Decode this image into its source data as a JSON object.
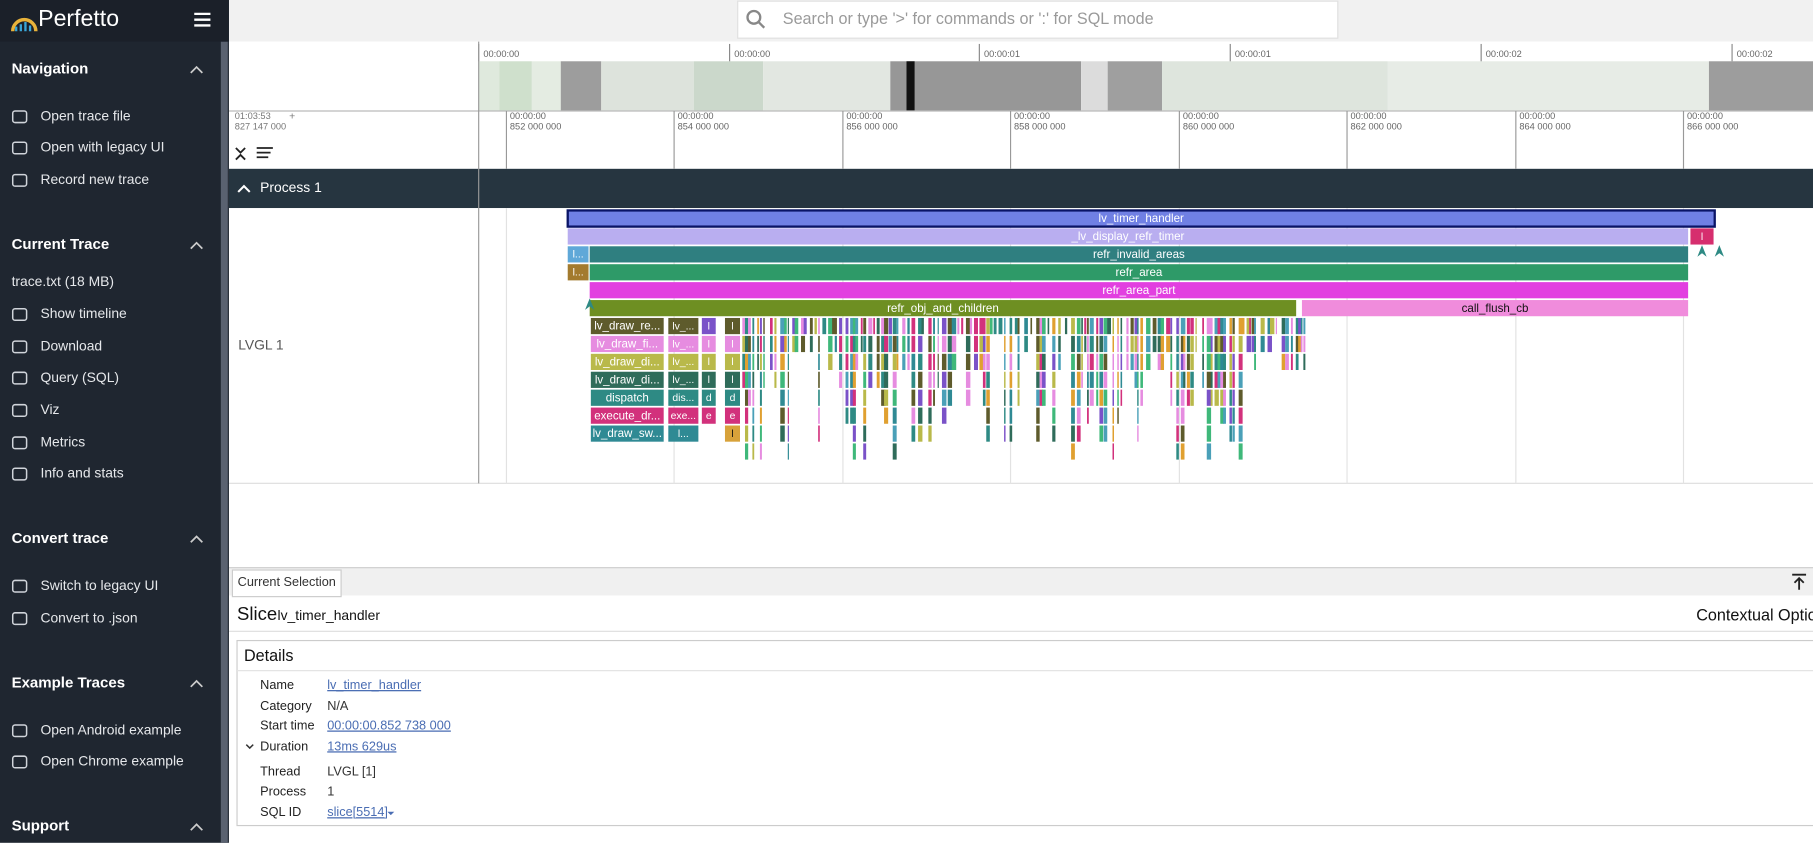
{
  "sidebar": {
    "brand": "Perfetto",
    "sections": [
      {
        "title": "Navigation",
        "items": [
          "Open trace file",
          "Open with legacy UI",
          "Record new trace"
        ]
      },
      {
        "title": "Current Trace",
        "items": [
          "trace.txt (18 MB)",
          "Show timeline",
          "Download",
          "Query (SQL)",
          "Viz",
          "Metrics",
          "Info and stats"
        ]
      },
      {
        "title": "Convert trace",
        "items": [
          "Switch to legacy UI",
          "Convert to .json"
        ]
      },
      {
        "title": "Example Traces",
        "items": [
          "Open Android example",
          "Open Chrome example"
        ]
      },
      {
        "title": "Support"
      }
    ]
  },
  "search": {
    "placeholder": "Search or type '>' for commands or ':' for SQL mode"
  },
  "overview": {
    "ticks": [
      "00:00:00",
      "00:00:00",
      "00:00:01",
      "00:00:01",
      "00:00:02",
      "00:00:02"
    ]
  },
  "timeline": {
    "offset": {
      "time": "01:03:53",
      "ns": "827 147 000",
      "sign": "+"
    },
    "ticks": [
      {
        "time": "00:00:00",
        "ns": "852 000 000"
      },
      {
        "time": "00:00:00",
        "ns": "854 000 000"
      },
      {
        "time": "00:00:00",
        "ns": "856 000 000"
      },
      {
        "time": "00:00:00",
        "ns": "858 000 000"
      },
      {
        "time": "00:00:00",
        "ns": "860 000 000"
      },
      {
        "time": "00:00:00",
        "ns": "862 000 000"
      },
      {
        "time": "00:00:00",
        "ns": "864 000 000"
      },
      {
        "time": "00:00:00",
        "ns": "866 000 000"
      }
    ]
  },
  "process": {
    "title": "Process 1",
    "track": {
      "name": "LVGL 1",
      "slices": [
        {
          "label": "lv_timer_handler",
          "color": "#7080e4"
        },
        {
          "label": "_lv_display_refr_timer",
          "color": "#b9aef0"
        },
        {
          "label": "l",
          "color": "#d62e6e"
        },
        {
          "label": "refr_invalid_areas",
          "color": "#2f7f80"
        },
        {
          "label": "l...",
          "color": "#5fa8d8"
        },
        {
          "label": "refr_area",
          "color": "#2e9a68"
        },
        {
          "label": "l...",
          "color": "#a37b2e"
        },
        {
          "label": "refr_area_part",
          "color": "#e23fe0"
        },
        {
          "label": "refr_obj_and_children",
          "color": "#6e8f22"
        },
        {
          "label": "call_flush_cb",
          "color": "#f08cdc"
        },
        {
          "label": "lv_draw_re...",
          "color": "#5e5b2c"
        },
        {
          "label": "lv_draw_fi...",
          "color": "#e68ce0"
        },
        {
          "label": "lv_draw_di...",
          "color": "#b9b94a"
        },
        {
          "label": "lv_draw_di...",
          "color": "#2f6c5a"
        },
        {
          "label": "dispatch",
          "color": "#2e8a84"
        },
        {
          "label": "execute_dr...",
          "color": "#d2317c"
        },
        {
          "label": "lv_draw_sw...",
          "color": "#2f8a94"
        },
        {
          "label": "lv_...",
          "color": "#5e5b2c"
        },
        {
          "label": "lv_...",
          "color": "#e68ce0"
        },
        {
          "label": "lv_...",
          "color": "#b9b94a"
        },
        {
          "label": "lv_...",
          "color": "#2f6c5a"
        },
        {
          "label": "dis...",
          "color": "#2e8a84"
        },
        {
          "label": "exe...",
          "color": "#d2317c"
        },
        {
          "label": "l...",
          "color": "#2f8a94"
        },
        {
          "label": "l",
          "color": "#7a52c8"
        },
        {
          "label": "l",
          "color": "#e68ce0"
        },
        {
          "label": "l",
          "color": "#b9b94a"
        },
        {
          "label": "l",
          "color": "#2f6c5a"
        },
        {
          "label": "d",
          "color": "#2e8a84"
        },
        {
          "label": "e",
          "color": "#d2317c"
        },
        {
          "label": "l",
          "color": "#5e5b2c"
        },
        {
          "label": "l",
          "color": "#e68ce0"
        },
        {
          "label": "l",
          "color": "#b9b94a"
        },
        {
          "label": "l",
          "color": "#2f6c5a"
        },
        {
          "label": "d",
          "color": "#2e8a84"
        },
        {
          "label": "e",
          "color": "#d2317c"
        },
        {
          "label": "l",
          "color": "#d8a23a"
        }
      ]
    }
  },
  "details": {
    "tab": "Current Selection",
    "kind": "Slice",
    "name": "lv_timer_handler",
    "options": "Contextual Options",
    "heading": "Details",
    "rows": [
      {
        "label": "Name",
        "value": "lv_timer_handler"
      },
      {
        "label": "Category",
        "value": "N/A"
      },
      {
        "label": "Start time",
        "value": "00:00:00.852 738 000"
      },
      {
        "label": "Duration",
        "value": "13ms 629us"
      },
      {
        "label": "Thread",
        "value": "LVGL [1]"
      },
      {
        "label": "Process",
        "value": "1"
      },
      {
        "label": "SQL ID",
        "value": "slice[5514]"
      }
    ]
  }
}
